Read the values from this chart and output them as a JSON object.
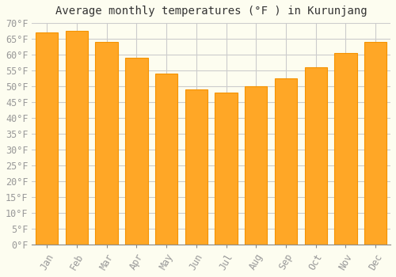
{
  "title": "Average monthly temperatures (°F ) in Kurunjang",
  "months": [
    "Jan",
    "Feb",
    "Mar",
    "Apr",
    "May",
    "Jun",
    "Jul",
    "Aug",
    "Sep",
    "Oct",
    "Nov",
    "Dec"
  ],
  "values": [
    67,
    67.5,
    64,
    59,
    54,
    49,
    48,
    50,
    52.5,
    56,
    60.5,
    64
  ],
  "bar_color": "#FFA726",
  "bar_edge_color": "#F59300",
  "ylim": [
    0,
    70
  ],
  "ytick_step": 5,
  "background_color": "#FDFDF0",
  "grid_color": "#CCCCCC",
  "title_fontsize": 10,
  "tick_fontsize": 8.5
}
